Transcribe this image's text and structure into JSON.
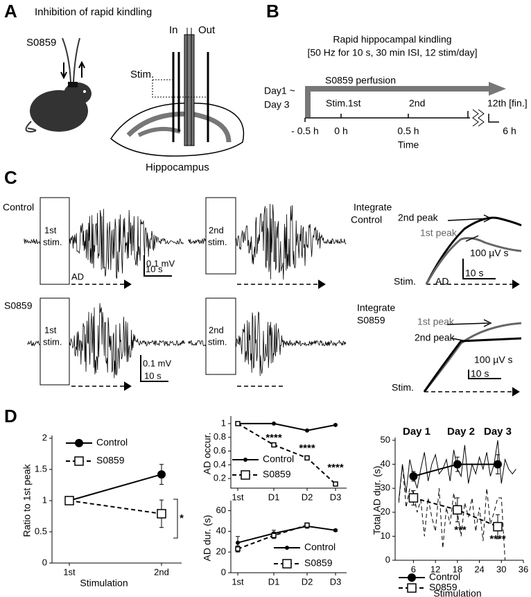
{
  "panel_a": {
    "label": "A",
    "title": "Inhibition of rapid kindling",
    "drug": "S0859",
    "in": "In",
    "out": "Out",
    "stim": "Stim.",
    "region": "Hippocampus"
  },
  "panel_b": {
    "label": "B",
    "title": "Rapid hippocampal kindling",
    "subtitle": "[50 Hz for 10 s, 30 min ISI, 12 stim/day]",
    "perfusion": "S0859 perfusion",
    "days": [
      "Day1 ~",
      "Day 3"
    ],
    "stim_labels": [
      "Stim.1st",
      "2nd",
      "12th [fin.]"
    ],
    "time_labels": [
      "- 0.5 h",
      "0 h",
      "0.5 h",
      "6 h"
    ],
    "xlabel": "Time"
  },
  "panel_c": {
    "label": "C",
    "rows": [
      "Control",
      "S0859"
    ],
    "stim_1": [
      "1st",
      "stim."
    ],
    "stim_2": [
      "2nd",
      "stim."
    ],
    "scale_v": "0.1 mV",
    "scale_t": "10 s",
    "ad": "AD",
    "integrate": [
      [
        "Integrate",
        "Control"
      ],
      [
        "Integrate",
        "S0859"
      ]
    ],
    "peak_2": "2nd peak",
    "peak_1": "1st peak",
    "scale_int": "100 µV s",
    "stim": "Stim."
  },
  "panel_d": {
    "label": "D"
  },
  "chart_data": [
    {
      "type": "line",
      "ylabel": "Ratio to 1st peak",
      "xlabel": "Stimulation",
      "categories": [
        "1st",
        "2nd"
      ],
      "ylim": [
        0,
        2
      ],
      "yticks": [
        0,
        0.5,
        1,
        1.5,
        2
      ],
      "series": [
        {
          "name": "Control",
          "color": "#000000",
          "marker": "circle",
          "dashed": false,
          "values": [
            1,
            1.42
          ],
          "errors": [
            0.02,
            0.16
          ]
        },
        {
          "name": "S0859",
          "color": "#000000",
          "marker": "square",
          "dashed": true,
          "values": [
            1,
            0.79
          ],
          "errors": [
            0.02,
            0.22
          ]
        }
      ],
      "annotations": [
        "*"
      ]
    },
    {
      "type": "line",
      "ylabel": "AD occur.",
      "categories": [
        "1st",
        "D1",
        "D2",
        "D3"
      ],
      "ylim": [
        0.06,
        1.07
      ],
      "yticks": [
        0.2,
        0.4,
        0.6,
        0.8,
        1
      ],
      "series": [
        {
          "name": "Control",
          "color": "#000000",
          "marker": "dot",
          "dashed": false,
          "values": [
            1,
            1,
            0.9,
            0.98
          ]
        },
        {
          "name": "S0859",
          "color": "#000000",
          "marker": "square",
          "dashed": true,
          "values": [
            1,
            0.69,
            0.5,
            0.12
          ]
        }
      ],
      "annotations": [
        "****",
        "****",
        "****"
      ]
    },
    {
      "type": "line",
      "ylabel": "AD dur. (s)",
      "categories": [
        "1st",
        "D1",
        "D2",
        "D3"
      ],
      "ylim": [
        0,
        67
      ],
      "yticks": [
        0,
        20,
        40,
        60
      ],
      "series": [
        {
          "name": "Control",
          "color": "#000000",
          "marker": "dot",
          "dashed": false,
          "values": [
            29,
            38,
            45,
            41
          ],
          "errors": [
            6,
            3,
            2,
            1
          ]
        },
        {
          "name": "S0859",
          "color": "#000000",
          "marker": "square",
          "dashed": true,
          "values": [
            23,
            36,
            46,
            null
          ],
          "errors": [
            3,
            3,
            2,
            null
          ]
        }
      ]
    },
    {
      "type": "line",
      "ylabel": "Total AD dur. (s)",
      "xlabel": "Stimulation",
      "xlim": [
        1,
        36
      ],
      "xticks": [
        6,
        12,
        18,
        24,
        30,
        36
      ],
      "ylim": [
        0,
        50
      ],
      "yticks": [
        0,
        10,
        20,
        30,
        40,
        50
      ],
      "series": [
        {
          "color": "#000000",
          "thin": true,
          "dashed": false,
          "x": [
            2,
            3,
            4,
            5,
            6,
            7,
            8,
            9,
            10,
            11,
            12,
            13,
            14,
            15,
            16,
            17,
            18,
            19,
            20,
            21,
            22,
            23,
            24,
            25,
            26,
            27,
            28,
            29,
            30,
            31,
            32,
            33,
            34
          ],
          "values": [
            25,
            40,
            28,
            42,
            35,
            30,
            38,
            45,
            33,
            40,
            44,
            36,
            38,
            42,
            33,
            46,
            38,
            35,
            48,
            32,
            40,
            36,
            43,
            38,
            45,
            35,
            40,
            50,
            32,
            42,
            38,
            36,
            38
          ]
        },
        {
          "color": "#000000",
          "thin": true,
          "dashed": true,
          "x": [
            2,
            3,
            4,
            5,
            6,
            7,
            8,
            9,
            10,
            11,
            12,
            13,
            14,
            15,
            16,
            17,
            18,
            19,
            20,
            21,
            22,
            23,
            24,
            25,
            26,
            27,
            28,
            29,
            30,
            31,
            32,
            33,
            34
          ],
          "values": [
            24,
            40,
            22,
            30,
            28,
            20,
            25,
            10,
            26,
            18,
            12,
            30,
            5,
            22,
            15,
            28,
            20,
            10,
            24,
            18,
            26,
            12,
            22,
            8,
            30,
            15,
            20,
            26,
            26,
            0,
            0,
            0,
            0
          ]
        },
        {
          "name": "Control",
          "color": "#000000",
          "marker": "circle",
          "dashed": false,
          "x": [
            6,
            18,
            29
          ],
          "values": [
            35,
            40,
            40
          ],
          "errors": [
            2,
            3,
            4
          ]
        },
        {
          "name": "S0859",
          "color": "#000000",
          "marker": "square",
          "dashed": true,
          "x": [
            6,
            18,
            29
          ],
          "values": [
            26,
            21,
            14
          ],
          "errors": [
            3,
            5,
            5
          ]
        }
      ],
      "annotations": [
        "Day 1",
        "Day 2",
        "Day 3",
        "***",
        "****"
      ]
    }
  ]
}
